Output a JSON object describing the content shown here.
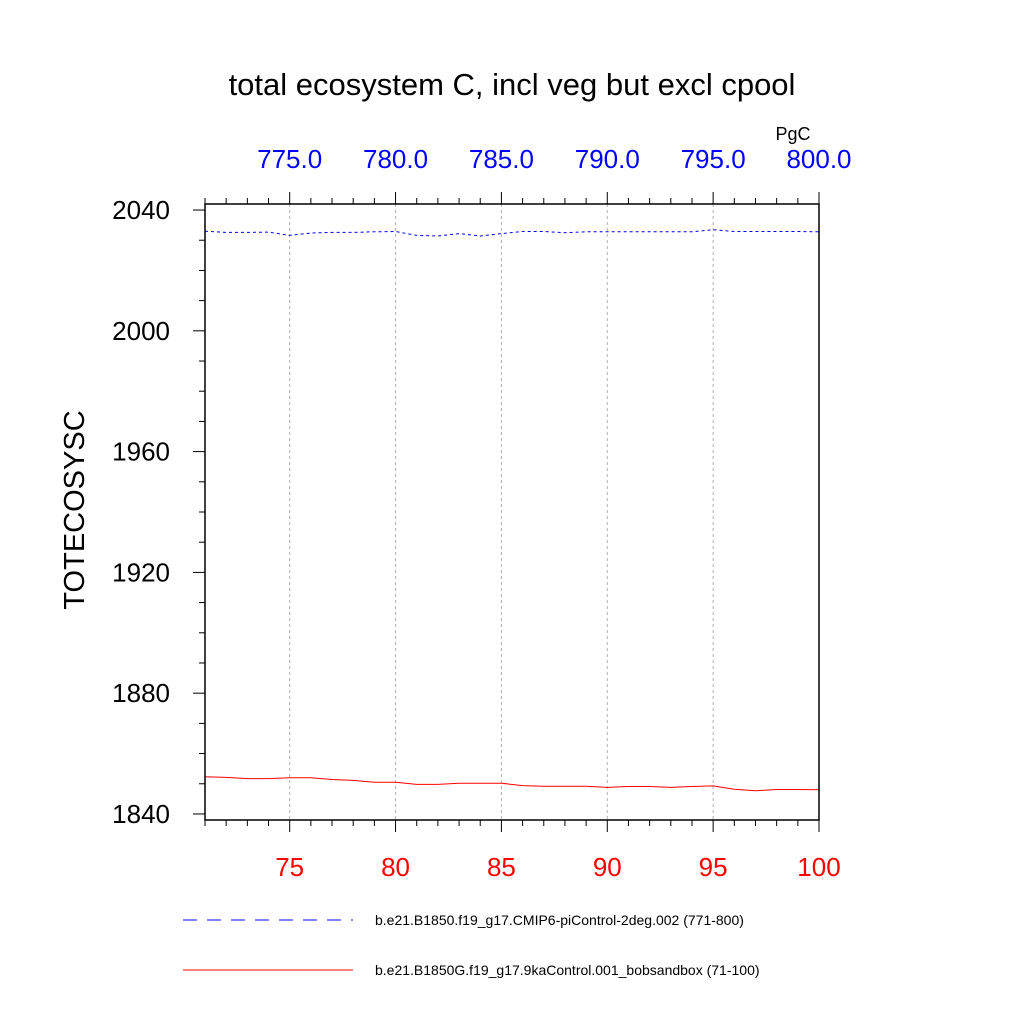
{
  "chart_data": {
    "type": "line",
    "title": "total ecosystem C, incl veg but excl cpool",
    "ylabel": "TOTECOSYSC",
    "top_axis_units": "PgC",
    "colors": {
      "top_axis": "#0000ff",
      "bottom_axis": "#ff0000"
    },
    "bottom_axis": {
      "range": [
        71,
        100
      ],
      "tick_labels": [
        "75",
        "80",
        "85",
        "90",
        "95",
        "100"
      ],
      "tick_values": [
        75,
        80,
        85,
        90,
        95,
        100
      ]
    },
    "top_axis": {
      "range": [
        771,
        800
      ],
      "tick_labels": [
        "775.0",
        "780.0",
        "785.0",
        "790.0",
        "795.0",
        "800.0"
      ],
      "tick_values": [
        775,
        780,
        785,
        790,
        795,
        800
      ]
    },
    "y_axis": {
      "range": [
        1838,
        2042
      ],
      "tick_labels": [
        "1840",
        "1880",
        "1920",
        "1960",
        "2000",
        "2040"
      ],
      "tick_values": [
        1840,
        1880,
        1920,
        1960,
        2000,
        2040
      ]
    },
    "grid": "vertical dashed at major x ticks",
    "series": [
      {
        "name": "b.e21.B1850.f19_g17.CMIP6-piControl-2deg.002 (771-800)",
        "axis": "top",
        "color": "#0000ff",
        "style": "dashed",
        "x": [
          771,
          772,
          773,
          774,
          775,
          776,
          777,
          778,
          779,
          780,
          781,
          782,
          783,
          784,
          785,
          786,
          787,
          788,
          789,
          790,
          791,
          792,
          793,
          794,
          795,
          796,
          797,
          798,
          799,
          800
        ],
        "y": [
          2033.0,
          2032.6,
          2032.6,
          2032.7,
          2031.6,
          2032.4,
          2032.6,
          2032.6,
          2032.8,
          2032.9,
          2031.6,
          2031.4,
          2032.2,
          2031.4,
          2032.2,
          2032.9,
          2032.9,
          2032.5,
          2032.8,
          2032.8,
          2032.8,
          2032.8,
          2032.8,
          2032.8,
          2033.5,
          2032.9,
          2032.9,
          2032.9,
          2032.9,
          2032.8
        ]
      },
      {
        "name": "b.e21.B1850G.f19_g17.9kaControl.001_bobsandbox (71-100)",
        "axis": "bottom",
        "color": "#ff0000",
        "style": "solid",
        "x": [
          71,
          72,
          73,
          74,
          75,
          76,
          77,
          78,
          79,
          80,
          81,
          82,
          83,
          84,
          85,
          86,
          87,
          88,
          89,
          90,
          91,
          92,
          93,
          94,
          95,
          96,
          97,
          98,
          99,
          100
        ],
        "y": [
          1852.3,
          1852.1,
          1851.7,
          1851.7,
          1852.0,
          1852.0,
          1851.4,
          1851.1,
          1850.5,
          1850.5,
          1849.8,
          1849.8,
          1850.2,
          1850.2,
          1850.2,
          1849.4,
          1849.2,
          1849.2,
          1849.2,
          1848.8,
          1849.1,
          1849.1,
          1848.8,
          1849.1,
          1849.3,
          1848.2,
          1847.7,
          1848.1,
          1848.1,
          1848.0
        ]
      }
    ],
    "legend": "below plot"
  }
}
